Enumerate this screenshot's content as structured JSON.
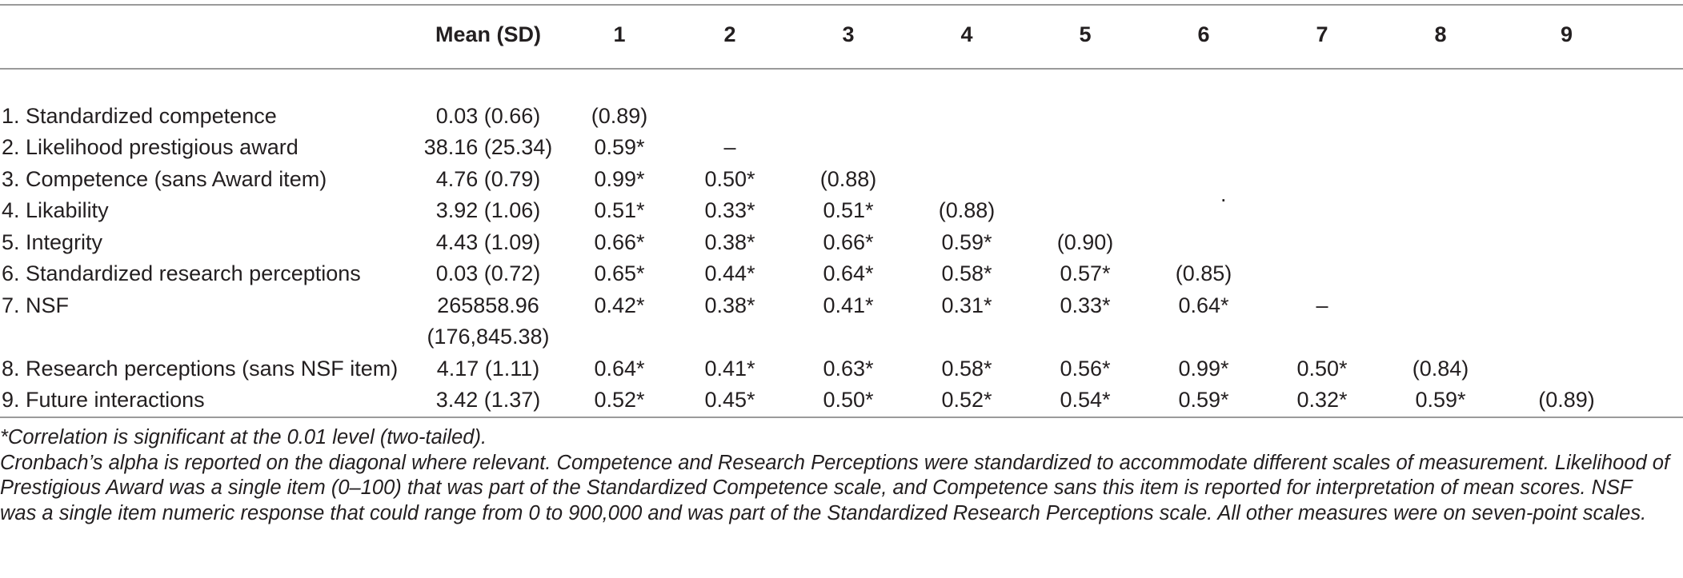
{
  "table": {
    "headers": [
      "",
      "Mean (SD)",
      "1",
      "2",
      "3",
      "4",
      "5",
      "6",
      "7",
      "8",
      "9"
    ],
    "rows": [
      {
        "variable": "1. Standardized competence",
        "mean_sd": "0.03 (0.66)",
        "mean_sd_cont": "",
        "cells": [
          "(0.89)",
          "",
          "",
          "",
          "",
          "",
          "",
          "",
          ""
        ]
      },
      {
        "variable": "2. Likelihood prestigious award",
        "mean_sd": "38.16 (25.34)",
        "mean_sd_cont": "",
        "cells": [
          "0.59*",
          "–",
          "",
          "",
          "",
          "",
          "",
          "",
          ""
        ]
      },
      {
        "variable": "3. Competence (sans Award item)",
        "mean_sd": "4.76 (0.79)",
        "mean_sd_cont": "",
        "cells": [
          "0.99*",
          "0.50*",
          "(0.88)",
          "",
          "",
          "",
          "",
          "",
          ""
        ]
      },
      {
        "variable": "4. Likability",
        "mean_sd": "3.92 (1.06)",
        "mean_sd_cont": "",
        "cells": [
          "0.51*",
          "0.33*",
          "0.51*",
          "(0.88)",
          "",
          "",
          "",
          "",
          ""
        ]
      },
      {
        "variable": "5. Integrity",
        "mean_sd": "4.43 (1.09)",
        "mean_sd_cont": "",
        "cells": [
          "0.66*",
          "0.38*",
          "0.66*",
          "0.59*",
          "(0.90)",
          "",
          "",
          "",
          ""
        ]
      },
      {
        "variable": "6. Standardized research perceptions",
        "mean_sd": "0.03 (0.72)",
        "mean_sd_cont": "",
        "cells": [
          "0.65*",
          "0.44*",
          "0.64*",
          "0.58*",
          "0.57*",
          "(0.85)",
          "",
          "",
          ""
        ]
      },
      {
        "variable": "7. NSF",
        "mean_sd": "265858.96",
        "mean_sd_cont": "(176,845.38)",
        "cells": [
          "0.42*",
          "0.38*",
          "0.41*",
          "0.31*",
          "0.33*",
          "0.64*",
          "–",
          "",
          ""
        ]
      },
      {
        "variable": "8. Research perceptions (sans NSF item)",
        "mean_sd": "4.17 (1.11)",
        "mean_sd_cont": "",
        "cells": [
          "0.64*",
          "0.41*",
          "0.63*",
          "0.58*",
          "0.56*",
          "0.99*",
          "0.50*",
          "(0.84)",
          ""
        ]
      },
      {
        "variable": "9. Future interactions",
        "mean_sd": "3.42 (1.37)",
        "mean_sd_cont": "",
        "cells": [
          "0.52*",
          "0.45*",
          "0.50*",
          "0.52*",
          "0.54*",
          "0.59*",
          "0.32*",
          "0.59*",
          "(0.89)"
        ]
      }
    ],
    "stray_mark": "."
  },
  "notes": {
    "significance": "*Correlation is significant at the 0.01 level (two-tailed).",
    "alpha": "Cronbach’s alpha is reported on the diagonal where relevant. Competence and Research Perceptions were standardized to accommodate different scales of measurement. Likelihood of Prestigious Award was a single item (0–100) that was part of the Standardized Competence scale, and Competence sans this item is reported for interpretation of mean scores. NSF was a single item numeric response that could range from 0 to 900,000 and was part of the Standardized Research Perceptions scale. All other measures were on seven-point scales."
  }
}
